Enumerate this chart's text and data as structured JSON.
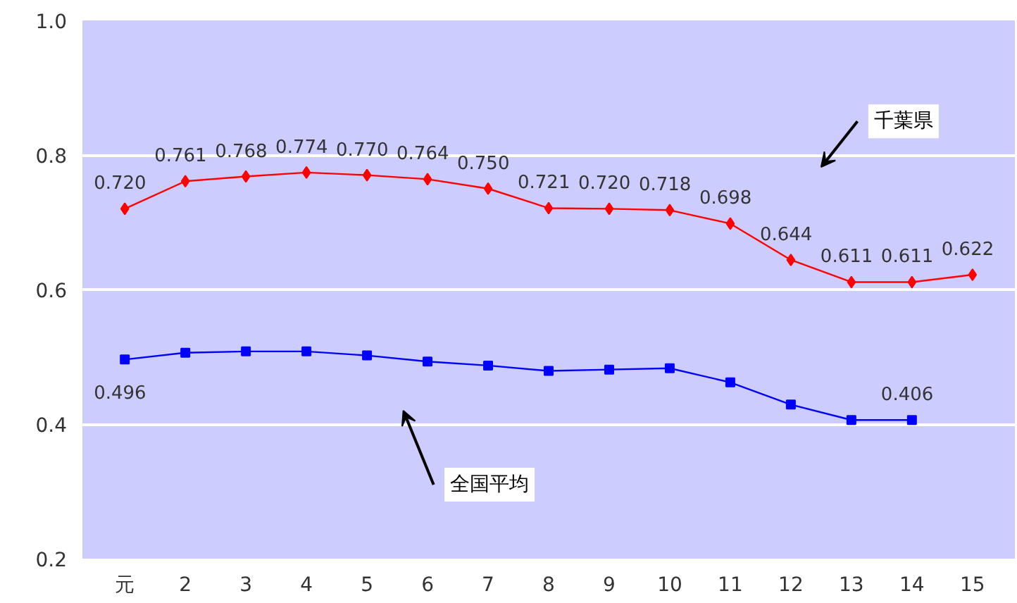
{
  "chart_data": {
    "type": "line",
    "categories": [
      "元",
      "2",
      "3",
      "4",
      "5",
      "6",
      "7",
      "8",
      "9",
      "10",
      "11",
      "12",
      "13",
      "14",
      "15"
    ],
    "series": [
      {
        "name": "千葉県",
        "color": "#ff0000",
        "marker": "diamond",
        "values": [
          0.72,
          0.761,
          0.768,
          0.774,
          0.77,
          0.764,
          0.75,
          0.721,
          0.72,
          0.718,
          0.698,
          0.644,
          0.611,
          0.611,
          0.622
        ],
        "value_labels": [
          "0.720",
          "0.761",
          "0.768",
          "0.774",
          "0.770",
          "0.764",
          "0.750",
          "0.721",
          "0.720",
          "0.718",
          "0.698",
          "0.644",
          "0.611",
          "0.611",
          "0.622"
        ]
      },
      {
        "name": "全国平均",
        "color": "#0000ff",
        "marker": "square",
        "values": [
          0.496,
          0.506,
          0.508,
          0.508,
          0.502,
          0.493,
          0.487,
          0.479,
          0.481,
          0.483,
          0.462,
          0.429,
          0.406,
          0.406,
          null
        ],
        "value_labels": [
          "0.496",
          null,
          null,
          null,
          null,
          null,
          null,
          null,
          null,
          null,
          null,
          null,
          null,
          "0.406",
          null
        ]
      }
    ],
    "ylim": [
      0.2,
      1.0
    ],
    "yticks": [
      {
        "value": 0.2,
        "label": "0.2"
      },
      {
        "value": 0.4,
        "label": "0.4"
      },
      {
        "value": 0.6,
        "label": "0.6"
      },
      {
        "value": 0.8,
        "label": "0.8"
      },
      {
        "value": 1.0,
        "label": "1.0"
      }
    ],
    "grid": "y"
  }
}
